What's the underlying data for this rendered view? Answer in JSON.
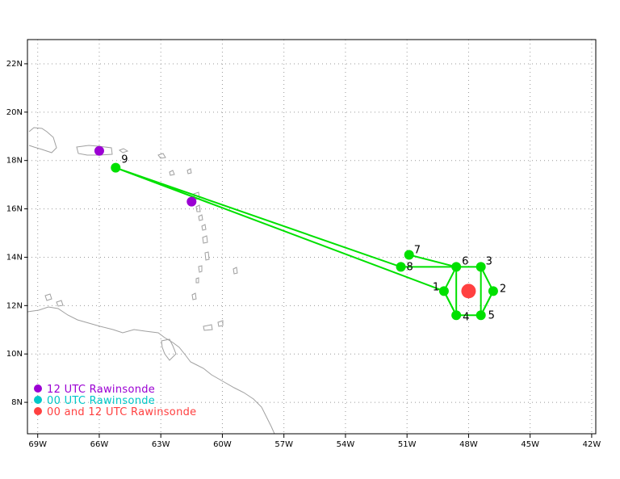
{
  "map": {
    "lon_ticks": [
      "69W",
      "66W",
      "63W",
      "60W",
      "57W",
      "54W",
      "51W",
      "48W",
      "45W",
      "42W"
    ],
    "lat_ticks": [
      "8N",
      "10N",
      "12N",
      "14N",
      "16N",
      "18N",
      "20N",
      "22N"
    ],
    "lon_range": [
      -69.5,
      -41.8
    ],
    "lat_range": [
      6.7,
      23.0
    ],
    "grid": true
  },
  "colors": {
    "track": "#00e000",
    "rawinsonde_12": "#9b00d3",
    "rawinsonde_00": "#00c8c8",
    "rawinsonde_both": "#ff4040",
    "coast": "#a0a0a0"
  },
  "flight_points": [
    {
      "label": "1",
      "lon": -49.2,
      "lat": 12.6
    },
    {
      "label": "2",
      "lon": -46.8,
      "lat": 12.6
    },
    {
      "label": "3",
      "lon": -47.4,
      "lat": 13.6
    },
    {
      "label": "4",
      "lon": -48.6,
      "lat": 11.6
    },
    {
      "label": "5",
      "lon": -47.4,
      "lat": 11.6
    },
    {
      "label": "6",
      "lon": -48.6,
      "lat": 13.6
    },
    {
      "label": "7",
      "lon": -50.9,
      "lat": 14.1
    },
    {
      "label": "8",
      "lon": -51.3,
      "lat": 13.6
    },
    {
      "label": "9",
      "lon": -65.2,
      "lat": 17.7
    }
  ],
  "rawinsondes": [
    {
      "type": "12",
      "lon": -66.0,
      "lat": 18.4
    },
    {
      "type": "12",
      "lon": -61.5,
      "lat": 16.3
    },
    {
      "type": "both",
      "lon": -48.0,
      "lat": 12.6
    }
  ],
  "legend": [
    {
      "label": "12 UTC Rawinsonde",
      "color": "#9b00d3"
    },
    {
      "label": "00 UTC Rawinsonde",
      "color": "#00c8c8"
    },
    {
      "label": "00 and 12 UTC Rawinsonde",
      "color": "#ff4040"
    }
  ]
}
